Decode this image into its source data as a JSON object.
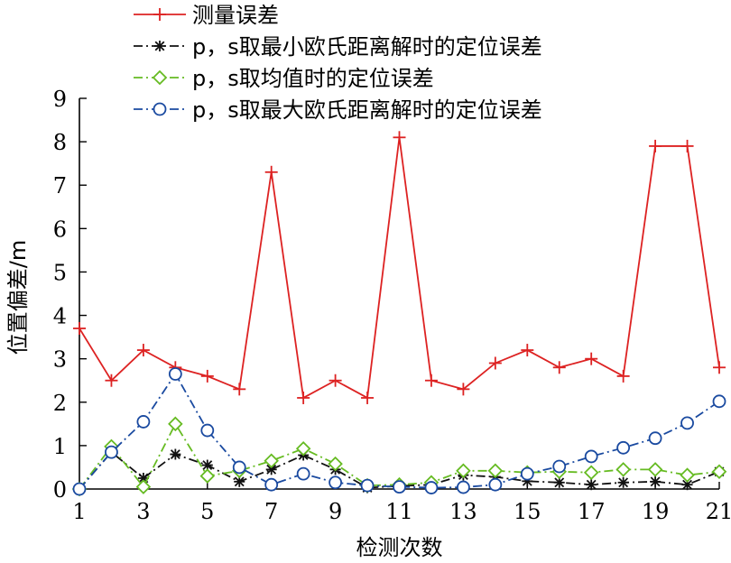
{
  "chart_data": {
    "type": "line",
    "xlabel": "检测次数",
    "ylabel": "位置偏差/m",
    "xlim": [
      1,
      21
    ],
    "ylim": [
      0,
      9
    ],
    "x": [
      1,
      2,
      3,
      4,
      5,
      6,
      7,
      8,
      9,
      10,
      11,
      12,
      13,
      14,
      15,
      16,
      17,
      18,
      19,
      20,
      21
    ],
    "x_tick_labels": [
      "1",
      "3",
      "5",
      "7",
      "9",
      "11",
      "13",
      "15",
      "17",
      "19",
      "21"
    ],
    "y_tick_labels": [
      "0",
      "1",
      "2",
      "3",
      "4",
      "5",
      "6",
      "7",
      "8",
      "9"
    ],
    "legend_position": "top-left",
    "series": [
      {
        "name": "测量误差",
        "color": "#dd2222",
        "line": "solid",
        "marker": "plus",
        "values": [
          3.7,
          2.5,
          3.2,
          2.8,
          2.6,
          2.3,
          7.3,
          2.1,
          2.5,
          2.1,
          8.1,
          2.5,
          2.3,
          2.9,
          3.2,
          2.8,
          3.0,
          2.6,
          7.9,
          7.9,
          2.8
        ]
      },
      {
        "name": "p，s取最小欧氏距离解时的定位误差",
        "color": "#111111",
        "line": "dashdot",
        "marker": "asterisk",
        "values": [
          0.0,
          0.85,
          0.25,
          0.8,
          0.55,
          0.17,
          0.45,
          0.78,
          0.45,
          0.03,
          0.07,
          0.1,
          0.32,
          0.28,
          0.18,
          0.15,
          0.1,
          0.15,
          0.17,
          0.1,
          0.4
        ]
      },
      {
        "name": "p，s取均值时的定位误差",
        "color": "#66bb22",
        "line": "dashdot",
        "marker": "diamond",
        "values": [
          0.0,
          0.98,
          0.05,
          1.5,
          0.3,
          0.42,
          0.65,
          0.93,
          0.58,
          0.08,
          0.1,
          0.15,
          0.42,
          0.42,
          0.38,
          0.4,
          0.38,
          0.45,
          0.45,
          0.32,
          0.4
        ]
      },
      {
        "name": "p，s取最大欧氏距离解时的定位误差",
        "color": "#1a4aa0",
        "line": "dashdot",
        "marker": "circle",
        "values": [
          0.0,
          0.85,
          1.55,
          2.65,
          1.35,
          0.5,
          0.1,
          0.35,
          0.15,
          0.08,
          0.05,
          0.03,
          0.04,
          0.1,
          0.35,
          0.52,
          0.75,
          0.95,
          1.17,
          1.52,
          2.02
        ]
      }
    ]
  }
}
